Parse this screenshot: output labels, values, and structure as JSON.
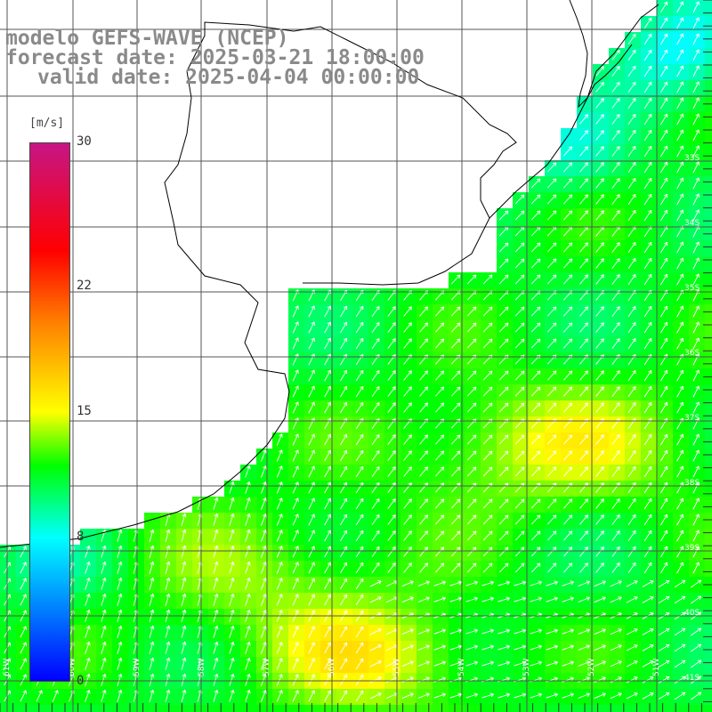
{
  "title": {
    "line1": "modelo GEFS-WAVE (NCEP)",
    "line2": "forecast date: 2025-03-21 18:00:00",
    "line3": "valid date: 2025-04-04 00:00:00"
  },
  "colorbar": {
    "unit": "[m/s]",
    "min": 0,
    "max": 30,
    "tick_labels": [
      "30",
      "22",
      "15",
      "8",
      "0"
    ],
    "tick_values": [
      30,
      22,
      15,
      8,
      0
    ],
    "colors": [
      "#0000ff",
      "#00ffff",
      "#00ff00",
      "#ffff00",
      "#ff8000",
      "#ff0000",
      "#c71585"
    ]
  },
  "lat_labels": [
    "33S",
    "34S",
    "35S",
    "36S",
    "37S",
    "38S",
    "39S",
    "40S",
    "41S"
  ],
  "lon_labels": [
    "61W",
    "60W",
    "59W",
    "58W",
    "57W",
    "56W",
    "55W",
    "54W",
    "53W",
    "52W",
    "51W"
  ],
  "colors": {
    "land": "#ffffff",
    "coast": "#000000",
    "grid": "#555555",
    "arrow": "#ffffff"
  }
}
